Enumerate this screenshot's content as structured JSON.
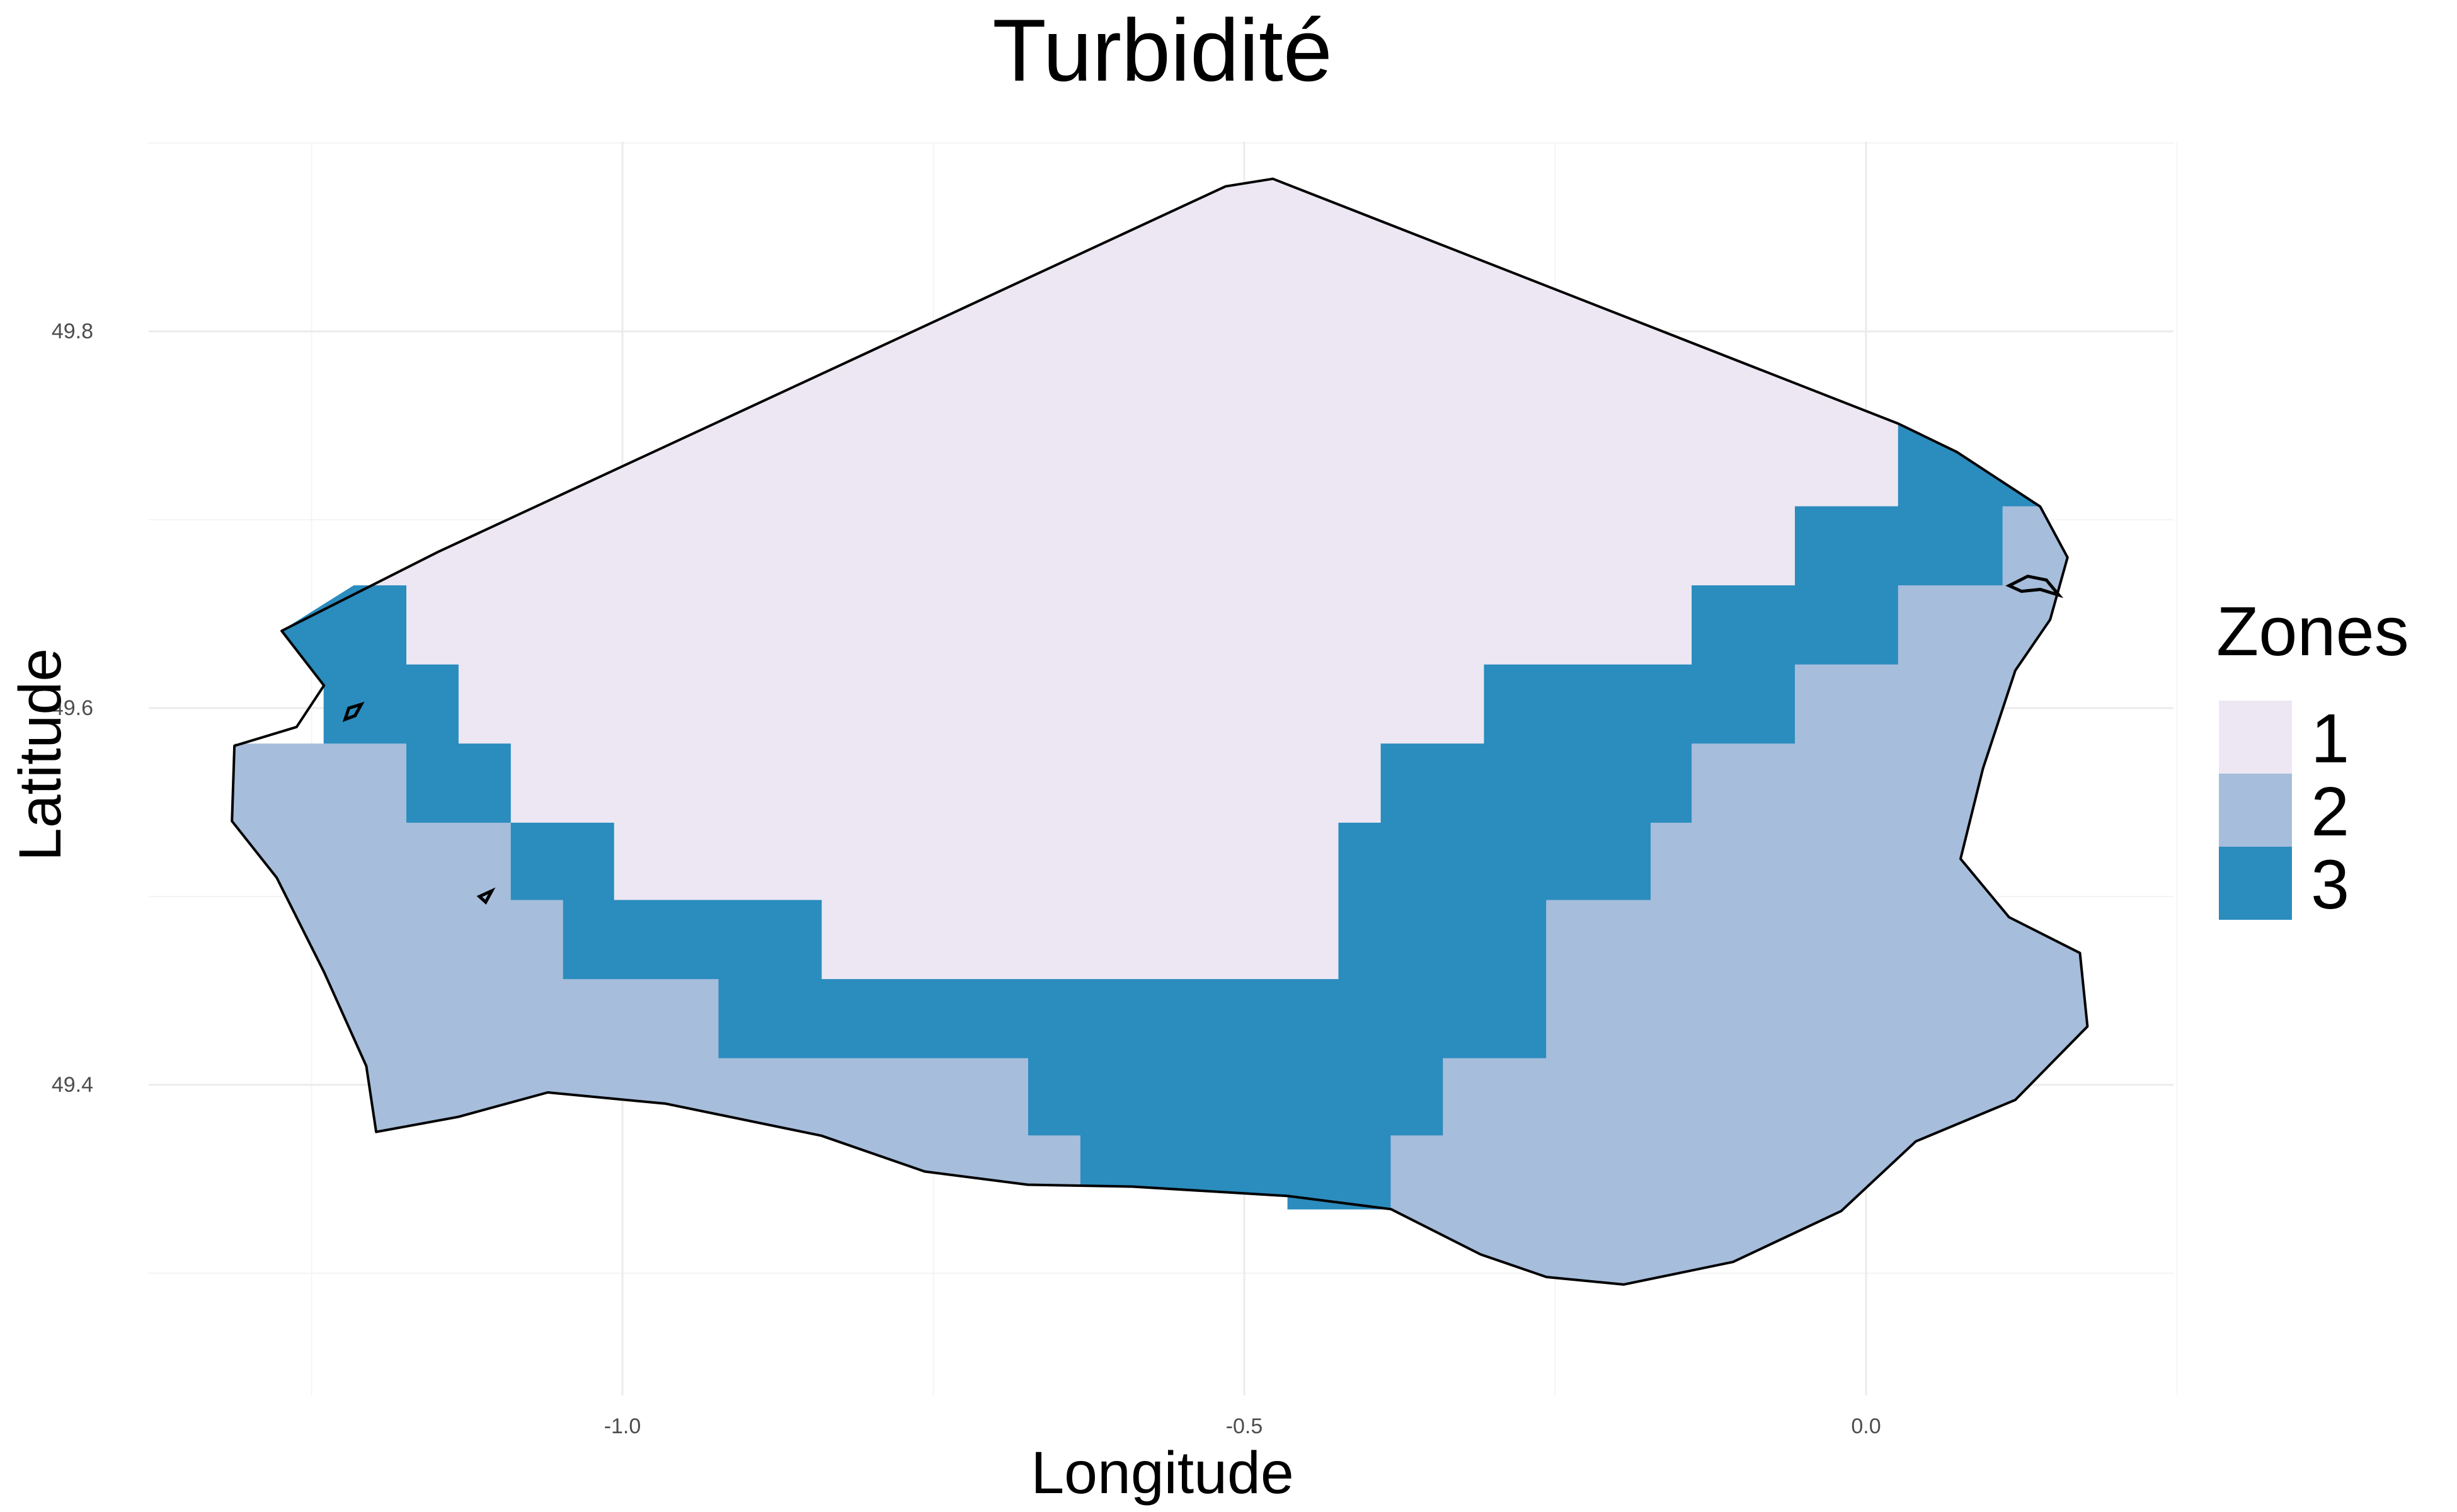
{
  "title": "Turbidité",
  "x_axis": {
    "label": "Longitude",
    "ticks": [
      "-1.0",
      "-0.5",
      "0.0"
    ]
  },
  "y_axis": {
    "label": "Latitude",
    "ticks": [
      "49.4",
      "49.6",
      "49.8"
    ]
  },
  "legend": {
    "title": "Zones",
    "entries": [
      {
        "label": "1",
        "color": "#ece7f2"
      },
      {
        "label": "2",
        "color": "#a6bddb"
      },
      {
        "label": "3",
        "color": "#2b8cbe"
      }
    ]
  },
  "chart_data": {
    "type": "heatmap",
    "title": "Turbidité",
    "xlabel": "Longitude",
    "ylabel": "Latitude",
    "xlim": [
      -1.39,
      0.24
    ],
    "ylim": [
      49.22,
      49.9
    ],
    "x_ticks": [
      -1.0,
      -0.5,
      0.0
    ],
    "y_ticks": [
      49.4,
      49.6,
      49.8
    ],
    "grid": true,
    "legend_position": "right",
    "cell_size_deg": [
      0.083,
      0.042
    ],
    "categories": [
      "1",
      "2",
      "3"
    ],
    "colors": [
      "#ece7f2",
      "#a6bddb",
      "#2b8cbe"
    ],
    "zone_polygons": [
      {
        "zone": "1",
        "coords": [
          [
            -1.274,
            49.641
          ],
          [
            -1.148,
            49.683
          ],
          [
            -0.515,
            49.877
          ],
          [
            -0.477,
            49.881
          ],
          [
            0.026,
            49.751
          ],
          [
            0.026,
            49.707
          ],
          [
            -0.057,
            49.707
          ],
          [
            -0.057,
            49.665
          ],
          [
            -0.14,
            49.665
          ],
          [
            -0.14,
            49.623
          ],
          [
            -0.307,
            49.623
          ],
          [
            -0.307,
            49.581
          ],
          [
            -0.39,
            49.581
          ],
          [
            -0.39,
            49.539
          ],
          [
            -0.424,
            49.539
          ],
          [
            -0.424,
            49.456
          ],
          [
            -0.84,
            49.456
          ],
          [
            -0.84,
            49.498
          ],
          [
            -1.007,
            49.498
          ],
          [
            -1.007,
            49.539
          ],
          [
            -1.09,
            49.539
          ],
          [
            -1.09,
            49.581
          ],
          [
            -1.132,
            49.581
          ],
          [
            -1.132,
            49.623
          ],
          [
            -1.174,
            49.623
          ],
          [
            -1.174,
            49.665
          ],
          [
            -1.274,
            49.641
          ]
        ]
      },
      {
        "zone": "3",
        "coords": [
          [
            -1.274,
            49.641
          ],
          [
            -1.216,
            49.665
          ],
          [
            -1.174,
            49.665
          ],
          [
            -1.174,
            49.623
          ],
          [
            -1.132,
            49.623
          ],
          [
            -1.132,
            49.581
          ],
          [
            -1.09,
            49.581
          ],
          [
            -1.09,
            49.539
          ],
          [
            -1.007,
            49.539
          ],
          [
            -1.007,
            49.498
          ],
          [
            -0.84,
            49.498
          ],
          [
            -0.84,
            49.456
          ],
          [
            -0.424,
            49.456
          ],
          [
            -0.424,
            49.539
          ],
          [
            -0.39,
            49.539
          ],
          [
            -0.39,
            49.581
          ],
          [
            -0.307,
            49.581
          ],
          [
            -0.307,
            49.623
          ],
          [
            -0.14,
            49.623
          ],
          [
            -0.14,
            49.665
          ],
          [
            -0.057,
            49.665
          ],
          [
            -0.057,
            49.707
          ],
          [
            0.026,
            49.707
          ],
          [
            0.026,
            49.751
          ],
          [
            0.073,
            49.736
          ],
          [
            0.14,
            49.707
          ],
          [
            0.11,
            49.707
          ],
          [
            0.11,
            49.665
          ],
          [
            0.026,
            49.665
          ],
          [
            0.026,
            49.623
          ],
          [
            -0.057,
            49.623
          ],
          [
            -0.057,
            49.581
          ],
          [
            -0.14,
            49.581
          ],
          [
            -0.14,
            49.539
          ],
          [
            -0.173,
            49.539
          ],
          [
            -0.173,
            49.498
          ],
          [
            -0.257,
            49.498
          ],
          [
            -0.257,
            49.414
          ],
          [
            -0.34,
            49.414
          ],
          [
            -0.34,
            49.373
          ],
          [
            -0.382,
            49.373
          ],
          [
            -0.382,
            49.334
          ],
          [
            -0.465,
            49.334
          ],
          [
            -0.465,
            49.341
          ],
          [
            -0.59,
            49.346
          ],
          [
            -0.632,
            49.346
          ],
          [
            -0.632,
            49.373
          ],
          [
            -0.674,
            49.373
          ],
          [
            -0.674,
            49.414
          ],
          [
            -0.923,
            49.414
          ],
          [
            -0.923,
            49.456
          ],
          [
            -1.048,
            49.456
          ],
          [
            -1.048,
            49.498
          ],
          [
            -1.09,
            49.498
          ],
          [
            -1.09,
            49.539
          ],
          [
            -1.174,
            49.539
          ],
          [
            -1.174,
            49.581
          ],
          [
            -1.24,
            49.581
          ],
          [
            -1.24,
            49.613
          ],
          [
            -1.274,
            49.641
          ]
        ]
      },
      {
        "zone": "2",
        "coords": [
          [
            -1.24,
            49.581
          ],
          [
            -1.174,
            49.581
          ],
          [
            -1.174,
            49.539
          ],
          [
            -1.09,
            49.539
          ],
          [
            -1.09,
            49.498
          ],
          [
            -1.048,
            49.498
          ],
          [
            -1.048,
            49.456
          ],
          [
            -0.923,
            49.456
          ],
          [
            -0.923,
            49.414
          ],
          [
            -0.674,
            49.414
          ],
          [
            -0.674,
            49.373
          ],
          [
            -0.632,
            49.373
          ],
          [
            -0.632,
            49.346
          ],
          [
            -0.674,
            49.347
          ],
          [
            -0.757,
            49.354
          ],
          [
            -0.84,
            49.373
          ],
          [
            -0.965,
            49.39
          ],
          [
            -1.06,
            49.396
          ],
          [
            -1.132,
            49.383
          ],
          [
            -1.198,
            49.375
          ],
          [
            -1.206,
            49.41
          ],
          [
            -1.24,
            49.46
          ],
          [
            -1.278,
            49.51
          ],
          [
            -1.314,
            49.54
          ],
          [
            -1.312,
            49.581
          ],
          [
            -1.24,
            49.581
          ]
        ]
      },
      {
        "zone": "2",
        "coords": [
          [
            -0.382,
            49.373
          ],
          [
            -0.34,
            49.373
          ],
          [
            -0.34,
            49.414
          ],
          [
            -0.257,
            49.414
          ],
          [
            -0.257,
            49.498
          ],
          [
            -0.173,
            49.498
          ],
          [
            -0.173,
            49.539
          ],
          [
            -0.14,
            49.539
          ],
          [
            -0.14,
            49.581
          ],
          [
            -0.057,
            49.581
          ],
          [
            -0.057,
            49.623
          ],
          [
            0.026,
            49.623
          ],
          [
            0.026,
            49.665
          ],
          [
            0.11,
            49.665
          ],
          [
            0.11,
            49.707
          ],
          [
            0.14,
            49.707
          ],
          [
            0.162,
            49.68
          ],
          [
            0.148,
            49.647
          ],
          [
            0.12,
            49.62
          ],
          [
            0.094,
            49.568
          ],
          [
            0.076,
            49.52
          ],
          [
            0.115,
            49.489
          ],
          [
            0.172,
            49.47
          ],
          [
            0.178,
            49.431
          ],
          [
            0.12,
            49.392
          ],
          [
            0.04,
            49.37
          ],
          [
            -0.02,
            49.333
          ],
          [
            -0.107,
            49.306
          ],
          [
            -0.195,
            49.294
          ],
          [
            -0.257,
            49.298
          ],
          [
            -0.31,
            49.31
          ],
          [
            -0.382,
            49.334
          ],
          [
            -0.382,
            49.373
          ]
        ]
      }
    ],
    "islands": [
      [
        [
          -1.223,
          49.594
        ],
        [
          -1.215,
          49.596
        ],
        [
          -1.21,
          49.602
        ],
        [
          -1.22,
          49.6
        ],
        [
          -1.223,
          49.594
        ]
      ],
      [
        [
          -1.115,
          49.5
        ],
        [
          -1.105,
          49.503
        ],
        [
          -1.11,
          49.497
        ],
        [
          -1.115,
          49.5
        ]
      ],
      [
        [
          0.115,
          49.665
        ],
        [
          0.13,
          49.67
        ],
        [
          0.145,
          49.668
        ],
        [
          0.155,
          49.66
        ],
        [
          0.14,
          49.663
        ],
        [
          0.125,
          49.662
        ],
        [
          0.115,
          49.665
        ]
      ]
    ]
  }
}
